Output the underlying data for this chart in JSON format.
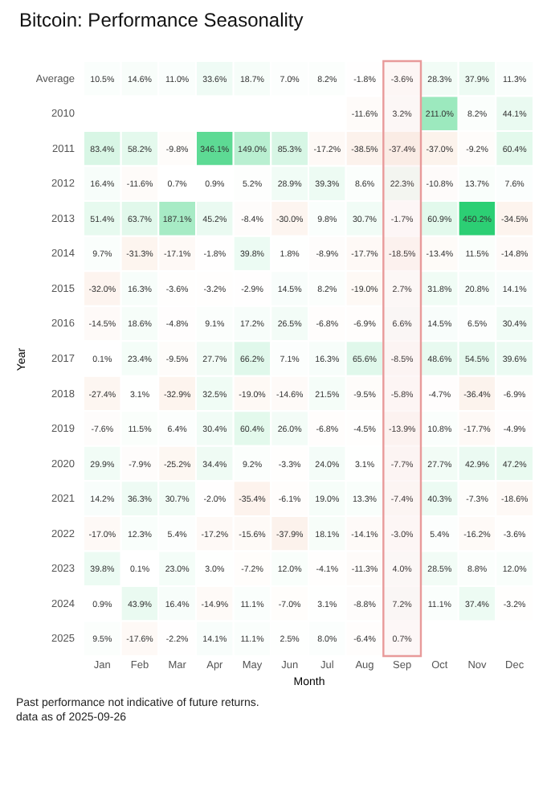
{
  "chart_data": {
    "type": "heatmap",
    "title": "Bitcoin: Performance Seasonality",
    "xlabel": "Month",
    "ylabel": "Year",
    "categories": [
      "Jan",
      "Feb",
      "Mar",
      "Apr",
      "May",
      "Jun",
      "Jul",
      "Aug",
      "Sep",
      "Oct",
      "Nov",
      "Dec"
    ],
    "y_categories": [
      "Average",
      "2010",
      "2011",
      "2012",
      "2013",
      "2014",
      "2015",
      "2016",
      "2017",
      "2018",
      "2019",
      "2020",
      "2021",
      "2022",
      "2023",
      "2024",
      "2025"
    ],
    "cells": [
      [
        10.5,
        14.6,
        11.0,
        33.6,
        18.7,
        7.0,
        8.2,
        -1.8,
        -3.6,
        28.3,
        37.9,
        11.3
      ],
      [
        null,
        null,
        null,
        null,
        null,
        null,
        null,
        -11.6,
        3.2,
        211.0,
        8.2,
        44.1
      ],
      [
        83.4,
        58.2,
        -9.8,
        346.1,
        149.0,
        85.3,
        -17.2,
        -38.5,
        -37.4,
        -37.0,
        -9.2,
        60.4
      ],
      [
        16.4,
        -11.6,
        0.7,
        0.9,
        5.2,
        28.9,
        39.3,
        8.6,
        22.3,
        -10.8,
        13.7,
        7.6
      ],
      [
        51.4,
        63.7,
        187.1,
        45.2,
        -8.4,
        -30.0,
        9.8,
        30.7,
        -1.7,
        60.9,
        450.2,
        -34.5
      ],
      [
        9.7,
        -31.3,
        -17.1,
        -1.8,
        39.8,
        1.8,
        -8.9,
        -17.7,
        -18.5,
        -13.4,
        11.5,
        -14.8
      ],
      [
        -32.0,
        16.3,
        -3.6,
        -3.2,
        -2.9,
        14.5,
        8.2,
        -19.0,
        2.7,
        31.8,
        20.8,
        14.1
      ],
      [
        -14.5,
        18.6,
        -4.8,
        9.1,
        17.2,
        26.5,
        -6.8,
        -6.9,
        6.6,
        14.5,
        6.5,
        30.4
      ],
      [
        0.1,
        23.4,
        -9.5,
        27.7,
        66.2,
        7.1,
        16.3,
        65.6,
        -8.5,
        48.6,
        54.5,
        39.6
      ],
      [
        -27.4,
        3.1,
        -32.9,
        32.5,
        -19.0,
        -14.6,
        21.5,
        -9.5,
        -5.8,
        -4.7,
        -36.4,
        -6.9
      ],
      [
        -7.6,
        11.5,
        6.4,
        30.4,
        60.4,
        26.0,
        -6.8,
        -4.5,
        -13.9,
        10.8,
        -17.7,
        -4.9
      ],
      [
        29.9,
        -7.9,
        -25.2,
        34.4,
        9.2,
        -3.3,
        24.0,
        3.1,
        -7.7,
        27.7,
        42.9,
        47.2
      ],
      [
        14.2,
        36.3,
        30.7,
        -2.0,
        -35.4,
        -6.1,
        19.0,
        13.3,
        -7.4,
        40.3,
        -7.3,
        -18.6
      ],
      [
        -17.0,
        12.3,
        5.4,
        -17.2,
        -15.6,
        -37.9,
        18.1,
        -14.1,
        -3.0,
        5.4,
        -16.2,
        -3.6
      ],
      [
        39.8,
        0.1,
        23.0,
        3.0,
        -7.2,
        12.0,
        -4.1,
        -11.3,
        4.0,
        28.5,
        8.8,
        12.0
      ],
      [
        0.9,
        43.9,
        16.4,
        -14.9,
        11.1,
        -7.0,
        3.1,
        -8.8,
        7.2,
        11.1,
        37.4,
        -3.2
      ],
      [
        9.5,
        -17.6,
        -2.2,
        14.1,
        11.1,
        2.5,
        8.0,
        -6.4,
        0.7,
        null,
        null,
        null
      ]
    ],
    "cell_labels": [
      [
        "10.5%",
        "14.6%",
        "11.0%",
        "33.6%",
        "18.7%",
        "7.0%",
        "8.2%",
        "-1.8%",
        "-3.6%",
        "28.3%",
        "37.9%",
        "11.3%"
      ],
      [
        null,
        null,
        null,
        null,
        null,
        null,
        null,
        "-11.6%",
        "3.2%",
        "211.0%",
        "8.2%",
        "44.1%"
      ],
      [
        "83.4%",
        "58.2%",
        "-9.8%",
        "346.1%",
        "149.0%",
        "85.3%",
        "-17.2%",
        "-38.5%",
        "-37.4%",
        "-37.0%",
        "-9.2%",
        "60.4%"
      ],
      [
        "16.4%",
        "-11.6%",
        "0.7%",
        "0.9%",
        "5.2%",
        "28.9%",
        "39.3%",
        "8.6%",
        "22.3%",
        "-10.8%",
        "13.7%",
        "7.6%"
      ],
      [
        "51.4%",
        "63.7%",
        "187.1%",
        "45.2%",
        "-8.4%",
        "-30.0%",
        "9.8%",
        "30.7%",
        "-1.7%",
        "60.9%",
        "450.2%",
        "-34.5%"
      ],
      [
        "9.7%",
        "-31.3%",
        "-17.1%",
        "-1.8%",
        "39.8%",
        "1.8%",
        "-8.9%",
        "-17.7%",
        "-18.5%",
        "-13.4%",
        "11.5%",
        "-14.8%"
      ],
      [
        "-32.0%",
        "16.3%",
        "-3.6%",
        "-3.2%",
        "-2.9%",
        "14.5%",
        "8.2%",
        "-19.0%",
        "2.7%",
        "31.8%",
        "20.8%",
        "14.1%"
      ],
      [
        "-14.5%",
        "18.6%",
        "-4.8%",
        "9.1%",
        "17.2%",
        "26.5%",
        "-6.8%",
        "-6.9%",
        "6.6%",
        "14.5%",
        "6.5%",
        "30.4%"
      ],
      [
        "0.1%",
        "23.4%",
        "-9.5%",
        "27.7%",
        "66.2%",
        "7.1%",
        "16.3%",
        "65.6%",
        "-8.5%",
        "48.6%",
        "54.5%",
        "39.6%"
      ],
      [
        "-27.4%",
        "3.1%",
        "-32.9%",
        "32.5%",
        "-19.0%",
        "-14.6%",
        "21.5%",
        "-9.5%",
        "-5.8%",
        "-4.7%",
        "-36.4%",
        "-6.9%"
      ],
      [
        "-7.6%",
        "11.5%",
        "6.4%",
        "30.4%",
        "60.4%",
        "26.0%",
        "-6.8%",
        "-4.5%",
        "-13.9%",
        "10.8%",
        "-17.7%",
        "-4.9%"
      ],
      [
        "29.9%",
        "-7.9%",
        "-25.2%",
        "34.4%",
        "9.2%",
        "-3.3%",
        "24.0%",
        "3.1%",
        "-7.7%",
        "27.7%",
        "42.9%",
        "47.2%"
      ],
      [
        "14.2%",
        "36.3%",
        "30.7%",
        "-2.0%",
        "-35.4%",
        "-6.1%",
        "19.0%",
        "13.3%",
        "-7.4%",
        "40.3%",
        "-7.3%",
        "-18.6%"
      ],
      [
        "-17.0%",
        "12.3%",
        "5.4%",
        "-17.2%",
        "-15.6%",
        "-37.9%",
        "18.1%",
        "-14.1%",
        "-3.0%",
        "5.4%",
        "-16.2%",
        "-3.6%"
      ],
      [
        "39.8%",
        "0.1%",
        "23.0%",
        "3.0%",
        "-7.2%",
        "12.0%",
        "-4.1%",
        "-11.3%",
        "4.0%",
        "28.5%",
        "8.8%",
        "12.0%"
      ],
      [
        "0.9%",
        "43.9%",
        "16.4%",
        "-14.9%",
        "11.1%",
        "-7.0%",
        "3.1%",
        "-8.8%",
        "7.2%",
        "11.1%",
        "37.4%",
        "-3.2%"
      ],
      [
        "9.5%",
        "-17.6%",
        "-2.2%",
        "14.1%",
        "11.1%",
        "2.5%",
        "8.0%",
        "-6.4%",
        "0.7%",
        null,
        null,
        null
      ]
    ],
    "bands": [
      {
        "axis": "x",
        "from": "Sep",
        "to": "Sep",
        "color": "#e89a9a"
      }
    ],
    "annotations": [
      "Past performance not indicative of future returns.",
      "data as of 2025-09-26"
    ]
  }
}
